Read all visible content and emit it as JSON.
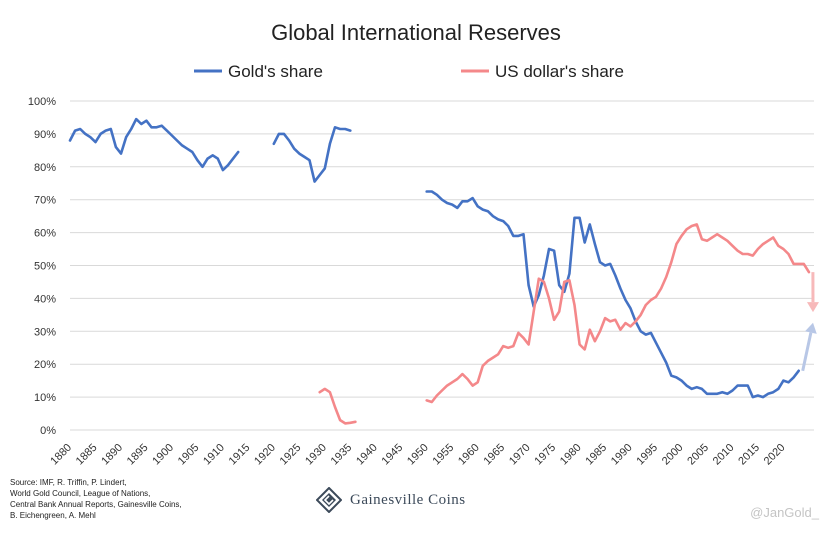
{
  "chart_data": {
    "type": "line",
    "title": "Global International Reserves",
    "xlim": [
      1880,
      2023
    ],
    "ylim": [
      0,
      100
    ],
    "y_ticks": [
      "0%",
      "10%",
      "20%",
      "30%",
      "40%",
      "50%",
      "60%",
      "70%",
      "80%",
      "90%",
      "100%"
    ],
    "x_ticks": [
      1880,
      1885,
      1890,
      1895,
      1900,
      1905,
      1910,
      1915,
      1920,
      1925,
      1930,
      1935,
      1940,
      1945,
      1950,
      1955,
      1960,
      1965,
      1970,
      1975,
      1980,
      1985,
      1990,
      1995,
      2000,
      2005,
      2010,
      2015,
      2020
    ],
    "grid": "horizontal",
    "legend_position": "top",
    "series": [
      {
        "name": "Gold's share",
        "color": "#4472c4",
        "segments": [
          [
            [
              1880,
              88
            ],
            [
              1881,
              91
            ],
            [
              1882,
              91.5
            ],
            [
              1883,
              90
            ],
            [
              1884,
              89
            ],
            [
              1885,
              87.5
            ],
            [
              1886,
              90
            ],
            [
              1887,
              91
            ],
            [
              1888,
              91.5
            ],
            [
              1889,
              86
            ],
            [
              1890,
              84
            ],
            [
              1891,
              89
            ],
            [
              1892,
              91.5
            ],
            [
              1893,
              94.5
            ],
            [
              1894,
              93
            ],
            [
              1895,
              94
            ],
            [
              1896,
              92
            ],
            [
              1897,
              92
            ],
            [
              1898,
              92.5
            ],
            [
              1899,
              91
            ],
            [
              1900,
              89.5
            ],
            [
              1901,
              88
            ],
            [
              1902,
              86.5
            ],
            [
              1903,
              85.5
            ],
            [
              1904,
              84.5
            ],
            [
              1905,
              82
            ],
            [
              1906,
              80
            ],
            [
              1907,
              82.5
            ],
            [
              1908,
              83.5
            ],
            [
              1909,
              82.5
            ],
            [
              1910,
              79
            ],
            [
              1911,
              80.5
            ],
            [
              1912,
              82.5
            ],
            [
              1913,
              84.5
            ]
          ],
          [
            [
              1920,
              87
            ],
            [
              1921,
              90
            ],
            [
              1922,
              90
            ],
            [
              1923,
              88
            ],
            [
              1924,
              85.5
            ],
            [
              1925,
              84
            ],
            [
              1926,
              83
            ],
            [
              1927,
              82
            ],
            [
              1928,
              75.5
            ],
            [
              1929,
              77.5
            ],
            [
              1930,
              79.5
            ],
            [
              1931,
              87
            ],
            [
              1932,
              92
            ],
            [
              1933,
              91.5
            ],
            [
              1934,
              91.5
            ],
            [
              1935,
              91
            ]
          ],
          [
            [
              1950,
              72.5
            ],
            [
              1951,
              72.5
            ],
            [
              1952,
              71.5
            ],
            [
              1953,
              70
            ],
            [
              1954,
              69
            ],
            [
              1955,
              68.5
            ],
            [
              1956,
              67.5
            ],
            [
              1957,
              69.5
            ],
            [
              1958,
              69.5
            ],
            [
              1959,
              70.5
            ],
            [
              1960,
              68
            ],
            [
              1961,
              67
            ],
            [
              1962,
              66.5
            ],
            [
              1963,
              65
            ],
            [
              1964,
              64
            ],
            [
              1965,
              63.5
            ],
            [
              1966,
              62
            ],
            [
              1967,
              59
            ],
            [
              1968,
              59
            ],
            [
              1969,
              59.5
            ],
            [
              1970,
              44
            ],
            [
              1971,
              37.5
            ],
            [
              1972,
              41
            ],
            [
              1973,
              47
            ],
            [
              1974,
              55
            ],
            [
              1975,
              54.5
            ],
            [
              1976,
              44
            ],
            [
              1977,
              42
            ],
            [
              1978,
              47.5
            ],
            [
              1979,
              64.5
            ],
            [
              1980,
              64.5
            ],
            [
              1981,
              57
            ],
            [
              1982,
              62.5
            ],
            [
              1983,
              56.5
            ],
            [
              1984,
              51
            ],
            [
              1985,
              50
            ],
            [
              1986,
              50.5
            ],
            [
              1987,
              47
            ],
            [
              1988,
              43
            ],
            [
              1989,
              39.5
            ],
            [
              1990,
              37
            ],
            [
              1991,
              33
            ],
            [
              1992,
              30
            ],
            [
              1993,
              29
            ],
            [
              1994,
              29.5
            ],
            [
              1995,
              26.5
            ],
            [
              1996,
              23.5
            ],
            [
              1997,
              20.5
            ],
            [
              1998,
              16.5
            ],
            [
              1999,
              16
            ],
            [
              2000,
              15
            ],
            [
              2001,
              13.5
            ],
            [
              2002,
              12.5
            ],
            [
              2003,
              13
            ],
            [
              2004,
              12.5
            ],
            [
              2005,
              11
            ],
            [
              2006,
              11
            ],
            [
              2007,
              11
            ],
            [
              2008,
              11.5
            ],
            [
              2009,
              11
            ],
            [
              2010,
              12
            ],
            [
              2011,
              13.5
            ],
            [
              2012,
              13.5
            ],
            [
              2013,
              13.5
            ],
            [
              2014,
              10
            ],
            [
              2015,
              10.5
            ],
            [
              2016,
              10
            ],
            [
              2017,
              11
            ],
            [
              2018,
              11.5
            ],
            [
              2019,
              12.5
            ],
            [
              2020,
              15
            ],
            [
              2021,
              14.5
            ],
            [
              2022,
              16
            ],
            [
              2023,
              18
            ]
          ]
        ]
      },
      {
        "name": "US dollar's share",
        "color": "#f4888a",
        "segments": [
          [
            [
              1929,
              11.5
            ],
            [
              1930,
              12.5
            ],
            [
              1931,
              11.5
            ],
            [
              1932,
              7
            ],
            [
              1933,
              3
            ],
            [
              1934,
              2
            ],
            [
              1935,
              2.2
            ],
            [
              1936,
              2.5
            ]
          ],
          [
            [
              1950,
              9
            ],
            [
              1951,
              8.5
            ],
            [
              1952,
              10.5
            ],
            [
              1953,
              12
            ],
            [
              1954,
              13.5
            ],
            [
              1955,
              14.5
            ],
            [
              1956,
              15.5
            ],
            [
              1957,
              17
            ],
            [
              1958,
              15.5
            ],
            [
              1959,
              13.5
            ],
            [
              1960,
              14.5
            ],
            [
              1961,
              19.5
            ],
            [
              1962,
              21
            ],
            [
              1963,
              22
            ],
            [
              1964,
              23
            ],
            [
              1965,
              25.5
            ],
            [
              1966,
              25
            ],
            [
              1967,
              25.5
            ],
            [
              1968,
              29.5
            ],
            [
              1969,
              28
            ],
            [
              1970,
              26
            ],
            [
              1971,
              36
            ],
            [
              1972,
              46
            ],
            [
              1973,
              45
            ],
            [
              1974,
              40
            ],
            [
              1975,
              33.5
            ],
            [
              1976,
              36
            ],
            [
              1977,
              45
            ],
            [
              1978,
              45.5
            ],
            [
              1979,
              38
            ],
            [
              1980,
              26
            ],
            [
              1981,
              24.5
            ],
            [
              1982,
              30.5
            ],
            [
              1983,
              27
            ],
            [
              1984,
              30
            ],
            [
              1985,
              34
            ],
            [
              1986,
              33
            ],
            [
              1987,
              33.5
            ],
            [
              1988,
              30.5
            ],
            [
              1989,
              32.5
            ],
            [
              1990,
              31.5
            ],
            [
              1991,
              33
            ],
            [
              1992,
              35
            ],
            [
              1993,
              38
            ],
            [
              1994,
              39.5
            ],
            [
              1995,
              40.5
            ],
            [
              1996,
              43
            ],
            [
              1997,
              46.5
            ],
            [
              1998,
              51
            ],
            [
              1999,
              56.5
            ],
            [
              2000,
              59
            ],
            [
              2001,
              61
            ],
            [
              2002,
              62
            ],
            [
              2003,
              62.5
            ],
            [
              2004,
              58
            ],
            [
              2005,
              57.5
            ],
            [
              2006,
              58.5
            ],
            [
              2007,
              59.5
            ],
            [
              2008,
              58.5
            ],
            [
              2009,
              57.5
            ],
            [
              2010,
              56
            ],
            [
              2011,
              54.5
            ],
            [
              2012,
              53.5
            ],
            [
              2013,
              53.5
            ],
            [
              2014,
              53
            ],
            [
              2015,
              55
            ],
            [
              2016,
              56.5
            ],
            [
              2017,
              57.5
            ],
            [
              2018,
              58.5
            ],
            [
              2019,
              56
            ],
            [
              2020,
              55
            ],
            [
              2021,
              53.5
            ],
            [
              2022,
              50.5
            ],
            [
              2023,
              50.5
            ],
            [
              2024,
              50.5
            ],
            [
              2025,
              48
            ]
          ]
        ]
      }
    ],
    "trend_arrows": [
      {
        "series": "Gold's share",
        "color": "#b8c7e6"
      },
      {
        "series": "US dollar's share",
        "color": "#f7b9ba"
      }
    ]
  },
  "footer": {
    "source_lines": [
      "Source: IMF, R. Triffin, P. Lindert,",
      "World Gold Council, League of Nations,",
      "Central Bank Annual Reports, Gainesville Coins,",
      "B. Eichengreen, A. Mehl"
    ],
    "brand_name": "Gainesville Coins",
    "handle": "@JanGold_"
  }
}
